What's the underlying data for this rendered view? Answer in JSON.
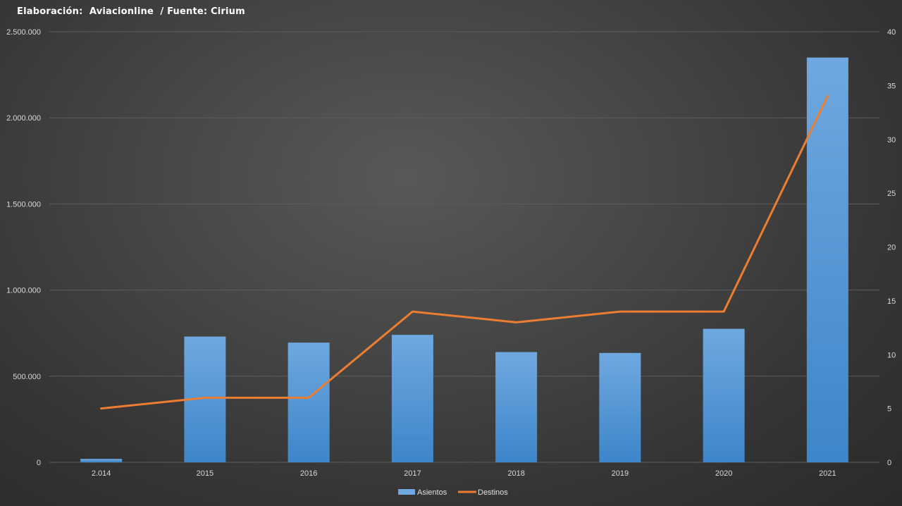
{
  "chart_data": {
    "type": "bar",
    "title": "Elaboración:  Aviacionline  / Fuente: Cirium",
    "categories": [
      "2.014",
      "2015",
      "2016",
      "2017",
      "2018",
      "2019",
      "2020",
      "2021"
    ],
    "series": [
      {
        "name": "Asientos",
        "type": "bar",
        "axis": "left",
        "values": [
          20000,
          730000,
          695000,
          740000,
          640000,
          635000,
          775000,
          2350000
        ]
      },
      {
        "name": "Destinos",
        "type": "line",
        "axis": "right",
        "values": [
          5,
          6,
          6,
          14,
          13,
          14,
          14,
          34
        ]
      }
    ],
    "y_left": {
      "range": [
        0,
        2500000
      ],
      "ticks": [
        0,
        500000,
        1000000,
        1500000,
        2000000,
        2500000
      ],
      "tick_labels": [
        "0",
        "500.000",
        "1.000.000",
        "1.500.000",
        "2.000.000",
        "2.500.000"
      ]
    },
    "y_right": {
      "range": [
        0,
        40
      ],
      "ticks": [
        0,
        5,
        10,
        15,
        20,
        25,
        30,
        35,
        40
      ],
      "tick_labels": [
        "0",
        "5",
        "10",
        "15",
        "20",
        "25",
        "30",
        "35",
        "40"
      ]
    },
    "grid": true,
    "legend": "bottom",
    "colors": {
      "bar_top": "#6fa8e0",
      "bar_bottom": "#3d86c9",
      "line": "#ed7d31",
      "grid": "#5c5c5c"
    }
  }
}
